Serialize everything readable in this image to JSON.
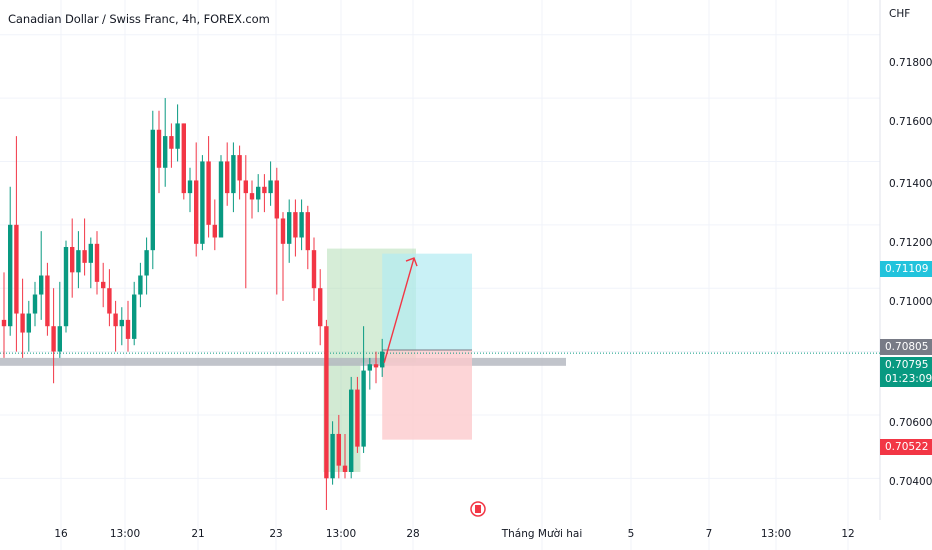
{
  "chart_data": {
    "type": "candlestick",
    "title": "Canadian Dollar / Swiss Franc, 4h, FOREX.com",
    "currency": "CHF",
    "ylim": [
      0.703,
      0.719
    ],
    "y_ticks": [
      "0.71800",
      "0.71600",
      "0.71400",
      "0.71200",
      "0.71000",
      "0.70600",
      "0.70400"
    ],
    "x_ticks": [
      "16",
      "13:00",
      "21",
      "23",
      "13:00",
      "28",
      "Tháng Mười hai",
      "5",
      "7",
      "13:00",
      "12"
    ],
    "price_labels": {
      "target": "0.71109",
      "entry": "0.70805",
      "last": "0.70795",
      "countdown": "01:23:09",
      "stop": "0.70522"
    },
    "ohlc": [
      [
        0.709,
        0.7105,
        0.7078,
        0.7088
      ],
      [
        0.7088,
        0.7132,
        0.7085,
        0.712
      ],
      [
        0.712,
        0.7148,
        0.708,
        0.7092
      ],
      [
        0.7092,
        0.7103,
        0.7078,
        0.7086
      ],
      [
        0.7086,
        0.7096,
        0.708,
        0.7092
      ],
      [
        0.7092,
        0.7102,
        0.7088,
        0.7098
      ],
      [
        0.7098,
        0.7118,
        0.709,
        0.7104
      ],
      [
        0.7104,
        0.7108,
        0.7085,
        0.7088
      ],
      [
        0.7088,
        0.71,
        0.707,
        0.708
      ],
      [
        0.708,
        0.7102,
        0.7078,
        0.7088
      ],
      [
        0.7088,
        0.7115,
        0.7086,
        0.7113
      ],
      [
        0.7113,
        0.7122,
        0.7097,
        0.7105
      ],
      [
        0.7105,
        0.7118,
        0.71,
        0.7112
      ],
      [
        0.7112,
        0.7122,
        0.7104,
        0.7108
      ],
      [
        0.7108,
        0.7116,
        0.71,
        0.7114
      ],
      [
        0.7114,
        0.7118,
        0.7098,
        0.7102
      ],
      [
        0.7102,
        0.7108,
        0.7094,
        0.71
      ],
      [
        0.71,
        0.7106,
        0.7088,
        0.7092
      ],
      [
        0.7092,
        0.7096,
        0.708,
        0.7088
      ],
      [
        0.7088,
        0.7094,
        0.7082,
        0.709
      ],
      [
        0.709,
        0.7096,
        0.708,
        0.7084
      ],
      [
        0.7084,
        0.7102,
        0.7082,
        0.7098
      ],
      [
        0.7098,
        0.7108,
        0.7094,
        0.7104
      ],
      [
        0.7104,
        0.7116,
        0.7098,
        0.7112
      ],
      [
        0.7112,
        0.7156,
        0.7106,
        0.715
      ],
      [
        0.715,
        0.7156,
        0.713,
        0.7138
      ],
      [
        0.7138,
        0.716,
        0.7132,
        0.7148
      ],
      [
        0.7148,
        0.7152,
        0.7138,
        0.7144
      ],
      [
        0.7144,
        0.7158,
        0.714,
        0.7152
      ],
      [
        0.7152,
        0.7152,
        0.7128,
        0.713
      ],
      [
        0.713,
        0.7138,
        0.7124,
        0.7134
      ],
      [
        0.7134,
        0.7146,
        0.711,
        0.7114
      ],
      [
        0.7114,
        0.7142,
        0.7112,
        0.714
      ],
      [
        0.714,
        0.7148,
        0.7116,
        0.712
      ],
      [
        0.712,
        0.7128,
        0.7112,
        0.7116
      ],
      [
        0.7116,
        0.7142,
        0.7116,
        0.714
      ],
      [
        0.714,
        0.7146,
        0.7126,
        0.713
      ],
      [
        0.713,
        0.7146,
        0.7124,
        0.7142
      ],
      [
        0.7142,
        0.7145,
        0.7128,
        0.7134
      ],
      [
        0.7134,
        0.7142,
        0.71,
        0.713
      ],
      [
        0.713,
        0.7134,
        0.7122,
        0.7128
      ],
      [
        0.7128,
        0.7136,
        0.7124,
        0.7132
      ],
      [
        0.7132,
        0.7136,
        0.7124,
        0.713
      ],
      [
        0.713,
        0.714,
        0.7126,
        0.7134
      ],
      [
        0.7134,
        0.7138,
        0.7098,
        0.7122
      ],
      [
        0.7122,
        0.7124,
        0.7096,
        0.7114
      ],
      [
        0.7114,
        0.7128,
        0.7108,
        0.7124
      ],
      [
        0.7124,
        0.7128,
        0.711,
        0.7116
      ],
      [
        0.7116,
        0.7128,
        0.7112,
        0.7124
      ],
      [
        0.7124,
        0.7126,
        0.7106,
        0.7112
      ],
      [
        0.7112,
        0.7116,
        0.7096,
        0.71
      ],
      [
        0.71,
        0.7106,
        0.7082,
        0.7088
      ],
      [
        0.7088,
        0.709,
        0.703,
        0.704
      ],
      [
        0.704,
        0.7058,
        0.7038,
        0.7054
      ],
      [
        0.7054,
        0.706,
        0.704,
        0.7044
      ],
      [
        0.7044,
        0.7054,
        0.704,
        0.7042
      ],
      [
        0.7042,
        0.7072,
        0.704,
        0.7068
      ],
      [
        0.7068,
        0.7072,
        0.7048,
        0.705
      ],
      [
        0.705,
        0.7088,
        0.7048,
        0.7074
      ],
      [
        0.7074,
        0.7078,
        0.7068,
        0.7076
      ],
      [
        0.7076,
        0.708,
        0.707,
        0.7075
      ],
      [
        0.7075,
        0.7084,
        0.7072,
        0.708
      ]
    ],
    "trade_setup": {
      "entry": 0.70805,
      "target": 0.71109,
      "stop": 0.70522
    },
    "grid": true
  },
  "colors": {
    "up": "#089981",
    "down": "#f23645",
    "grid": "#f0f3fa",
    "support_band": "#b2b5be",
    "demand_zone": "#a5d6a7",
    "target_zone": "#b2ebf2",
    "stop_zone": "#fccbcd",
    "arrow": "#f23645",
    "badge_target": "#22c3dc",
    "badge_entry": "#787b86",
    "badge_last": "#089981",
    "badge_stop": "#f23645"
  },
  "icons": {
    "event_flag": "canada-flag-event-icon"
  }
}
